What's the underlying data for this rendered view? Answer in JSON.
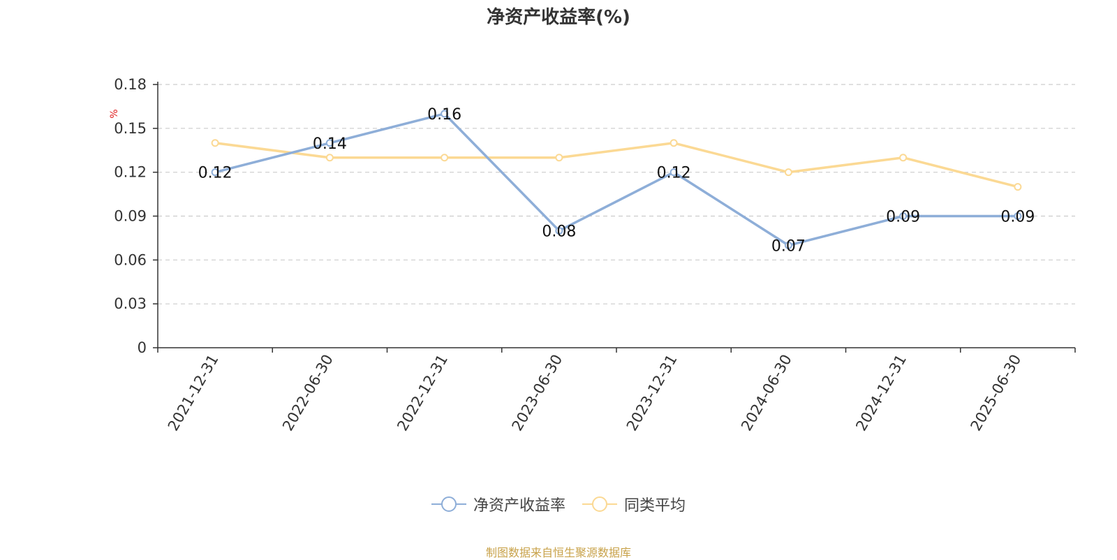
{
  "chart_data": {
    "type": "line",
    "title": "净资产收益率(%)",
    "ylabel": "%",
    "ylim": [
      0,
      0.18
    ],
    "yticks": [
      "0",
      "0.03",
      "0.06",
      "0.09",
      "0.12",
      "0.15",
      "0.18"
    ],
    "categories": [
      "2021-12-31",
      "2022-06-30",
      "2022-12-31",
      "2023-06-30",
      "2023-12-31",
      "2024-06-30",
      "2024-12-31",
      "2025-06-30"
    ],
    "series": [
      {
        "name": "净资产收益率",
        "color": "#8eaed8",
        "values": [
          0.12,
          0.14,
          0.16,
          0.08,
          0.12,
          0.07,
          0.09,
          0.09
        ],
        "labels": [
          "0.12",
          "0.14",
          "0.16",
          "0.08",
          "0.12",
          "0.07",
          "0.09",
          "0.09"
        ]
      },
      {
        "name": "同类平均",
        "color": "#fbd994",
        "values": [
          0.14,
          0.13,
          0.13,
          0.13,
          0.14,
          0.12,
          0.13,
          0.11
        ]
      }
    ],
    "grid": true,
    "legend_position": "bottom"
  },
  "source": "制图数据来自恒生聚源数据库"
}
